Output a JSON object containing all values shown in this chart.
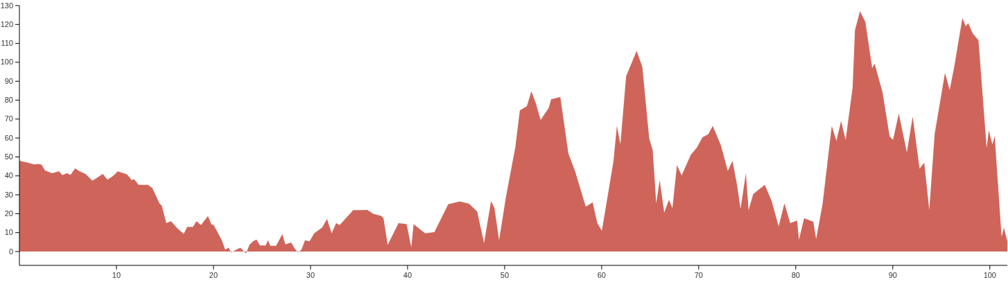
{
  "chart_data": {
    "type": "area",
    "color": "#cf655a",
    "x": [
      0,
      0.86,
      1.57,
      1.93,
      2.29,
      2.64,
      3.36,
      4.07,
      4.43,
      4.9,
      5.26,
      5.74,
      6.21,
      6.81,
      7.52,
      8,
      8.6,
      9.07,
      9.67,
      10.14,
      11.1,
      11.57,
      11.8,
      12.29,
      13.24,
      13.7,
      14.43,
      14.67,
      15.14,
      15.62,
      16.33,
      16.93,
      17.29,
      17.88,
      18.24,
      18.71,
      19.43,
      19.79,
      20.02,
      20.86,
      21.2,
      21.57,
      21.8,
      22.76,
      23.36,
      23.7,
      24.07,
      24.43,
      24.79,
      25.38,
      25.6,
      25.86,
      26.45,
      27.1,
      27.4,
      28,
      28.36,
      28.7,
      29.07,
      29.43,
      29.9,
      30.38,
      30.86,
      31.2,
      31.7,
      32.17,
      32.64,
      33,
      34.4,
      35.1,
      35.86,
      36.45,
      37.3,
      37.52,
      37.95,
      39.07,
      39.9,
      40.38,
      40.62,
      41.81,
      42.76,
      44.19,
      45.38,
      46.33,
      47.17,
      47.88,
      48.6,
      48.95,
      49.43,
      50.14,
      51.1,
      51.57,
      52.29,
      52.76,
      53.24,
      53.71,
      54.55,
      54.79,
      55.74,
      56.57,
      57.29,
      58.36,
      59.07,
      59.55,
      60.02,
      61.21,
      61.57,
      61.93,
      62.52,
      63.6,
      64.19,
      64.9,
      65.26,
      65.62,
      65.98,
      66.45,
      66.93,
      67.29,
      67.76,
      68.24,
      69.19,
      69.79,
      70.38,
      70.98,
      71.45,
      72.29,
      73,
      73.48,
      73.95,
      74.31,
      74.86,
      75.14,
      75.62,
      76.81,
      77.52,
      78.24,
      78.83,
      79.43,
      80.14,
      80.33,
      80.86,
      81.81,
      82.1,
      82.76,
      83.71,
      84.19,
      84.67,
      85.14,
      85.86,
      86.1,
      86.62,
      87.17,
      87.88,
      88.12,
      88.95,
      89.67,
      90.02,
      90.62,
      91.45,
      92.05,
      92.76,
      93.24,
      93.76,
      94.31,
      95.38,
      95.86,
      96.33,
      97.17,
      97.52,
      97.76,
      98.24,
      98.83,
      99.67,
      99.9,
      100.26,
      100.5,
      101.21,
      101.45,
      101.8
    ],
    "values": [
      48,
      47,
      46,
      46.3,
      45.9,
      42.9,
      41.4,
      42.4,
      40.4,
      41.4,
      40.5,
      44,
      42.4,
      41,
      37.5,
      39,
      41,
      38,
      40,
      42.4,
      40.8,
      37.7,
      38.3,
      35.3,
      35.3,
      33.5,
      25.5,
      24.3,
      15,
      16,
      12,
      9.4,
      13,
      13,
      16,
      14,
      18.8,
      14.3,
      14,
      6,
      1,
      2,
      -0.4,
      2,
      -1,
      3.5,
      5.4,
      6.3,
      3.2,
      3.2,
      6,
      3,
      3,
      9.3,
      3.8,
      4.8,
      1.7,
      -0.4,
      1,
      6,
      5.4,
      9.6,
      11.5,
      12.7,
      17.2,
      9.6,
      15,
      14,
      21.9,
      21.9,
      22,
      20,
      18.8,
      17.6,
      3.5,
      15,
      14.5,
      2.3,
      14.5,
      9.6,
      10.3,
      25,
      26.5,
      25.3,
      21.2,
      4.5,
      26.7,
      23,
      6,
      29,
      55,
      74.6,
      76.8,
      84.7,
      78,
      69.5,
      76,
      80.5,
      81.7,
      51.8,
      42,
      23.7,
      26,
      15,
      11,
      47.5,
      66.4,
      56.7,
      92.7,
      106,
      97.6,
      59.7,
      53.6,
      25.5,
      37.7,
      20.6,
      27.3,
      23,
      45.7,
      40.2,
      51.2,
      54.8,
      60.3,
      62,
      66.4,
      56,
      42.6,
      48,
      35.3,
      22.5,
      41.4,
      21.9,
      30.4,
      35.3,
      26.7,
      13.3,
      25.5,
      15,
      16.4,
      6.2,
      17.6,
      15.8,
      6.6,
      25,
      66.4,
      58.5,
      69,
      59,
      86.6,
      117,
      127,
      121.4,
      97,
      99.4,
      84,
      61,
      59,
      73,
      52.4,
      71.3,
      43.8,
      47,
      21.9,
      62,
      94.5,
      85.3,
      97.6,
      123.4,
      119,
      120.8,
      115.3,
      111.6,
      54.8,
      64,
      56.7,
      61,
      7.8,
      12.7,
      5.4
    ],
    "xlim": [
      0,
      101.8
    ],
    "ylim": [
      -7.3,
      130
    ],
    "xticks": [
      10,
      20,
      30,
      40,
      50,
      60,
      70,
      80,
      90,
      100
    ],
    "yticks": [
      0,
      10,
      20,
      30,
      40,
      50,
      60,
      70,
      80,
      90,
      100,
      110,
      120,
      130
    ]
  }
}
